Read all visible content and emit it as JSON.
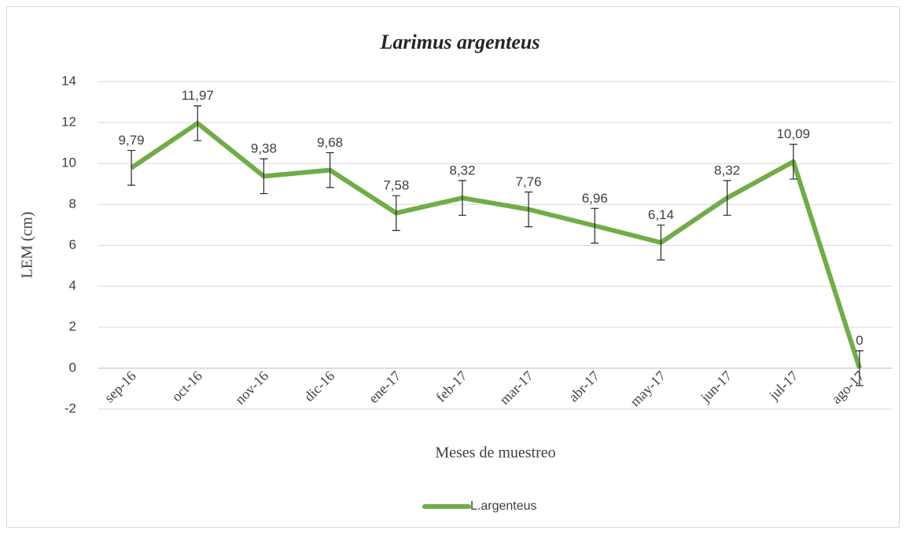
{
  "chart_data": {
    "type": "line",
    "title": "Larimus argenteus",
    "x_label": "Meses de muestreo",
    "y_label": "LEM (cm)",
    "categories": [
      "sep-16",
      "oct-16",
      "nov-16",
      "dic-16",
      "ene-17",
      "feb-17",
      "mar-17",
      "abr-17",
      "may-17",
      "jun-17",
      "jul-17",
      "ago-17"
    ],
    "series": [
      {
        "name": "L.argenteus",
        "color": "#70ad47",
        "values": [
          9.79,
          11.97,
          9.38,
          9.68,
          7.58,
          8.32,
          7.76,
          6.96,
          6.14,
          8.32,
          10.09,
          0
        ],
        "value_labels": [
          "9,79",
          "11,97",
          "9,38",
          "9,68",
          "7,58",
          "8,32",
          "7,76",
          "6,96",
          "6,14",
          "8,32",
          "10,09",
          "0"
        ],
        "errors": [
          0.85,
          0.85,
          0.85,
          0.85,
          0.85,
          0.85,
          0.85,
          0.85,
          0.85,
          0.85,
          0.85,
          0.85
        ]
      }
    ],
    "ylim": [
      -2,
      14
    ],
    "yticks": [
      -2,
      0,
      2,
      4,
      6,
      8,
      10,
      12,
      14
    ],
    "grid": true,
    "legend": "bottom"
  }
}
